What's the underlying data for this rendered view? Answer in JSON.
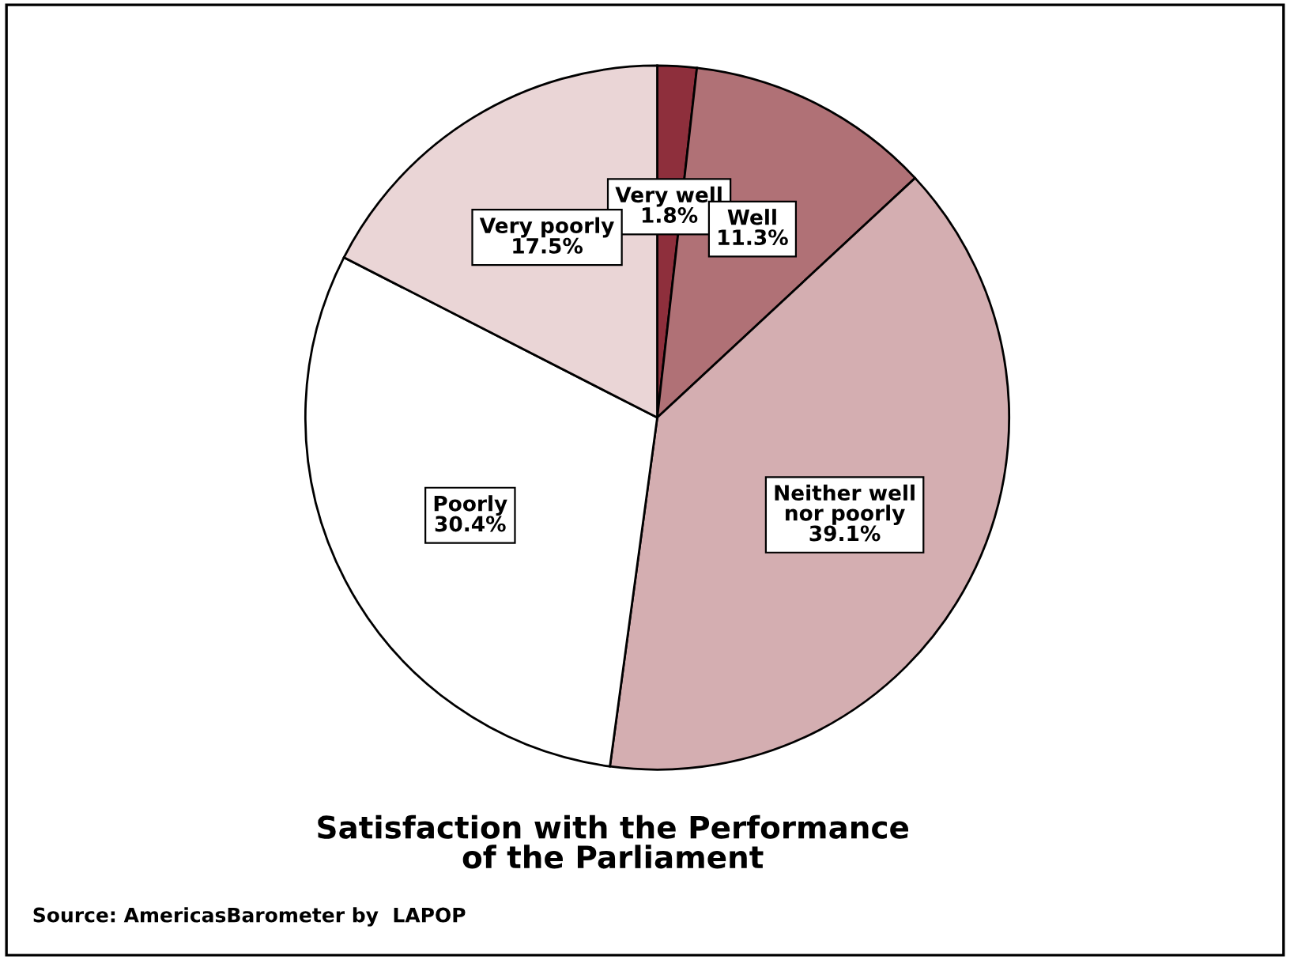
{
  "chart_data": {
    "type": "pie",
    "title": "Satisfaction with the Performance\nof the Parliament",
    "categories": [
      "Very well",
      "Well",
      "Neither well\nnor poorly",
      "Poorly",
      "Very poorly"
    ],
    "values": [
      1.8,
      11.3,
      39.1,
      30.4,
      17.5
    ],
    "value_labels": [
      "1.8%",
      "11.3%",
      "39.1%",
      "30.4%",
      "17.5%"
    ],
    "colors": [
      "#8e2f3c",
      "#b07176",
      "#d4aeb1",
      "#ffffff",
      "#ead5d6"
    ],
    "annotations": [
      "Source: AmericasBarometer by  LAPOP"
    ]
  }
}
